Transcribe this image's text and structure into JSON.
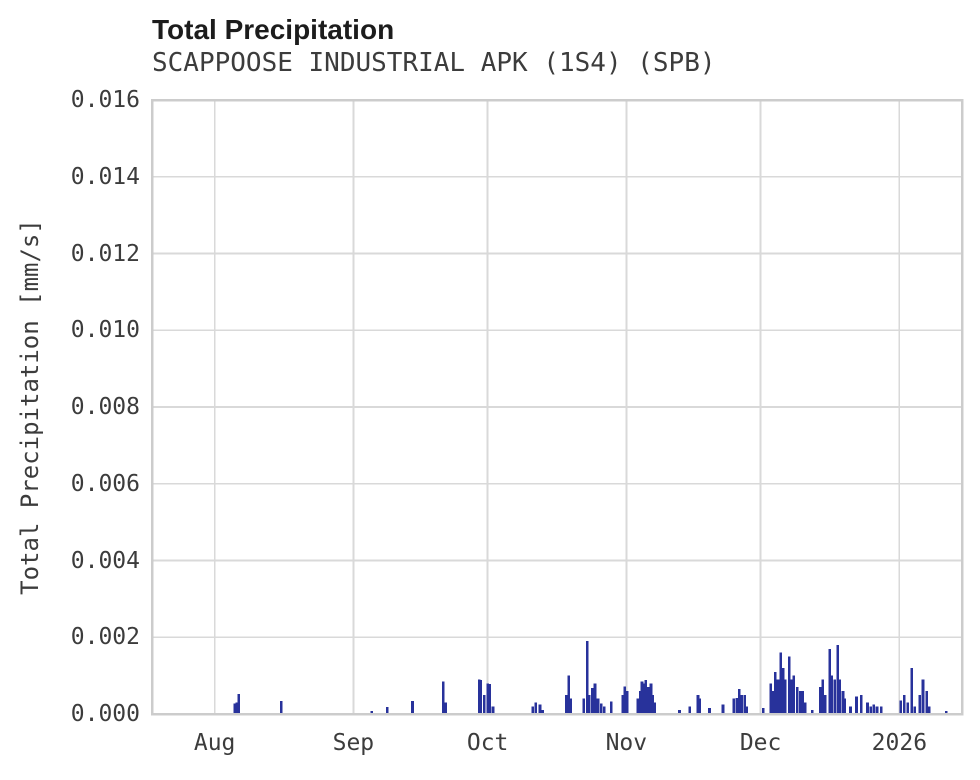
{
  "chart_data": {
    "type": "bar",
    "title": "Total Precipitation",
    "subtitle": "SCAPPOOSE INDUSTRIAL APK (1S4) (SPB)",
    "xlabel": "",
    "ylabel": "Total Precipitation [mm/s]",
    "ylim": [
      0,
      0.016
    ],
    "yticks": [
      {
        "value": 0.0,
        "label": "0.000"
      },
      {
        "value": 0.002,
        "label": "0.002"
      },
      {
        "value": 0.004,
        "label": "0.004"
      },
      {
        "value": 0.006,
        "label": "0.006"
      },
      {
        "value": 0.008,
        "label": "0.008"
      },
      {
        "value": 0.01,
        "label": "0.010"
      },
      {
        "value": 0.012,
        "label": "0.012"
      },
      {
        "value": 0.014,
        "label": "0.014"
      },
      {
        "value": 0.016,
        "label": "0.016"
      }
    ],
    "x_range": [
      "2025-07-18T00:00",
      "2026-01-15T00:00"
    ],
    "xticks": [
      {
        "t": "2025-08-01T00:00",
        "label": "Aug"
      },
      {
        "t": "2025-09-01T00:00",
        "label": "Sep"
      },
      {
        "t": "2025-10-01T00:00",
        "label": "Oct"
      },
      {
        "t": "2025-11-01T00:00",
        "label": "Nov"
      },
      {
        "t": "2025-12-01T00:00",
        "label": "Dec"
      },
      {
        "t": "2026-01-01T00:00",
        "label": "2026"
      }
    ],
    "grid": true,
    "legend": false,
    "colors": {
      "bar": "#28329B",
      "grid": "#d9d9d9",
      "border": "#cccccc",
      "title_text": "#1c1c1c",
      "axis_text": "#3c3c3c",
      "background": "#ffffff"
    },
    "points": [
      [
        "2025-08-05T12:00",
        0.00028
      ],
      [
        "2025-08-05T22:00",
        0.0003
      ],
      [
        "2025-08-06T10:00",
        0.00052
      ],
      [
        "2025-08-15T21:00",
        0.00034
      ],
      [
        "2025-09-05T02:00",
        8e-05
      ],
      [
        "2025-09-08T14:00",
        0.00018
      ],
      [
        "2025-09-14T05:00",
        0.00034
      ],
      [
        "2025-09-21T02:00",
        0.00085
      ],
      [
        "2025-09-21T14:00",
        0.0003
      ],
      [
        "2025-09-29T02:00",
        0.0009
      ],
      [
        "2025-09-29T12:00",
        0.00088
      ],
      [
        "2025-09-30T05:00",
        0.0005
      ],
      [
        "2025-10-01T00:00",
        0.0008
      ],
      [
        "2025-10-01T12:00",
        0.00078
      ],
      [
        "2025-10-02T05:00",
        0.0002
      ],
      [
        "2025-10-11T02:00",
        0.0002
      ],
      [
        "2025-10-11T19:00",
        0.0003
      ],
      [
        "2025-10-12T17:00",
        0.00025
      ],
      [
        "2025-10-13T07:00",
        0.0001
      ],
      [
        "2025-10-18T14:00",
        0.0005
      ],
      [
        "2025-10-19T02:00",
        0.001
      ],
      [
        "2025-10-19T14:00",
        0.0004
      ],
      [
        "2025-10-22T12:00",
        0.0004
      ],
      [
        "2025-10-23T07:00",
        0.0019
      ],
      [
        "2025-10-23T18:00",
        0.0005
      ],
      [
        "2025-10-24T10:00",
        0.00068
      ],
      [
        "2025-10-25T00:00",
        0.0008
      ],
      [
        "2025-10-25T16:00",
        0.0004
      ],
      [
        "2025-10-26T10:00",
        0.00028
      ],
      [
        "2025-10-27T02:00",
        0.0002
      ],
      [
        "2025-10-28T14:00",
        0.00032
      ],
      [
        "2025-10-31T05:00",
        0.0005
      ],
      [
        "2025-10-31T16:00",
        0.00072
      ],
      [
        "2025-11-01T04:00",
        0.0006
      ],
      [
        "2025-11-03T14:00",
        0.0004
      ],
      [
        "2025-11-04T02:00",
        0.0006
      ],
      [
        "2025-11-04T12:00",
        0.00085
      ],
      [
        "2025-11-04T22:00",
        0.0008
      ],
      [
        "2025-11-05T08:00",
        0.00088
      ],
      [
        "2025-11-05T20:00",
        0.0007
      ],
      [
        "2025-11-06T12:00",
        0.0008
      ],
      [
        "2025-11-06T22:00",
        0.0005
      ],
      [
        "2025-11-07T08:00",
        0.0003
      ],
      [
        "2025-11-12T21:00",
        0.0001
      ],
      [
        "2025-11-15T05:00",
        0.0002
      ],
      [
        "2025-11-17T00:00",
        0.0005
      ],
      [
        "2025-11-17T10:00",
        0.0004
      ],
      [
        "2025-11-19T14:00",
        0.00015
      ],
      [
        "2025-11-22T14:00",
        0.00025
      ],
      [
        "2025-11-25T00:00",
        0.0004
      ],
      [
        "2025-11-25T17:00",
        0.00042
      ],
      [
        "2025-11-26T05:00",
        0.00065
      ],
      [
        "2025-11-26T19:00",
        0.0005
      ],
      [
        "2025-11-27T10:00",
        0.0005
      ],
      [
        "2025-11-27T21:00",
        0.0002
      ],
      [
        "2025-12-01T14:00",
        0.00015
      ],
      [
        "2025-12-03T07:00",
        0.0008
      ],
      [
        "2025-12-03T17:00",
        0.0006
      ],
      [
        "2025-12-04T07:00",
        0.0011
      ],
      [
        "2025-12-04T21:00",
        0.0009
      ],
      [
        "2025-12-05T12:00",
        0.0016
      ],
      [
        "2025-12-06T00:00",
        0.0012
      ],
      [
        "2025-12-06T12:00",
        0.0009
      ],
      [
        "2025-12-07T10:00",
        0.0015
      ],
      [
        "2025-12-08T00:00",
        0.0009
      ],
      [
        "2025-12-08T10:00",
        0.001
      ],
      [
        "2025-12-09T05:00",
        0.0007
      ],
      [
        "2025-12-09T21:00",
        0.0006
      ],
      [
        "2025-12-10T10:00",
        0.0006
      ],
      [
        "2025-12-11T00:00",
        0.0003
      ],
      [
        "2025-12-12T12:00",
        0.0001
      ],
      [
        "2025-12-14T07:00",
        0.0007
      ],
      [
        "2025-12-14T21:00",
        0.0009
      ],
      [
        "2025-12-15T10:00",
        0.0005
      ],
      [
        "2025-12-16T10:00",
        0.0017
      ],
      [
        "2025-12-16T21:00",
        0.001
      ],
      [
        "2025-12-17T14:00",
        0.0009
      ],
      [
        "2025-12-18T05:00",
        0.0018
      ],
      [
        "2025-12-18T17:00",
        0.0009
      ],
      [
        "2025-12-19T10:00",
        0.0006
      ],
      [
        "2025-12-19T19:00",
        0.0004
      ],
      [
        "2025-12-21T02:00",
        0.0002
      ],
      [
        "2025-12-22T10:00",
        0.00045
      ],
      [
        "2025-12-23T12:00",
        0.0005
      ],
      [
        "2025-12-24T21:00",
        0.0003
      ],
      [
        "2025-12-25T14:00",
        0.0002
      ],
      [
        "2025-12-26T07:00",
        0.00025
      ],
      [
        "2025-12-27T00:00",
        0.0002
      ],
      [
        "2025-12-28T00:00",
        0.0002
      ],
      [
        "2026-01-01T07:00",
        0.00035
      ],
      [
        "2026-01-02T02:00",
        0.0005
      ],
      [
        "2026-01-02T21:00",
        0.0003
      ],
      [
        "2026-01-03T19:00",
        0.0012
      ],
      [
        "2026-01-04T10:00",
        0.0002
      ],
      [
        "2026-01-05T14:00",
        0.0005
      ],
      [
        "2026-01-06T07:00",
        0.0009
      ],
      [
        "2026-01-07T02:00",
        0.0006
      ],
      [
        "2026-01-07T17:00",
        0.0002
      ],
      [
        "2026-01-11T12:00",
        8e-05
      ]
    ]
  }
}
